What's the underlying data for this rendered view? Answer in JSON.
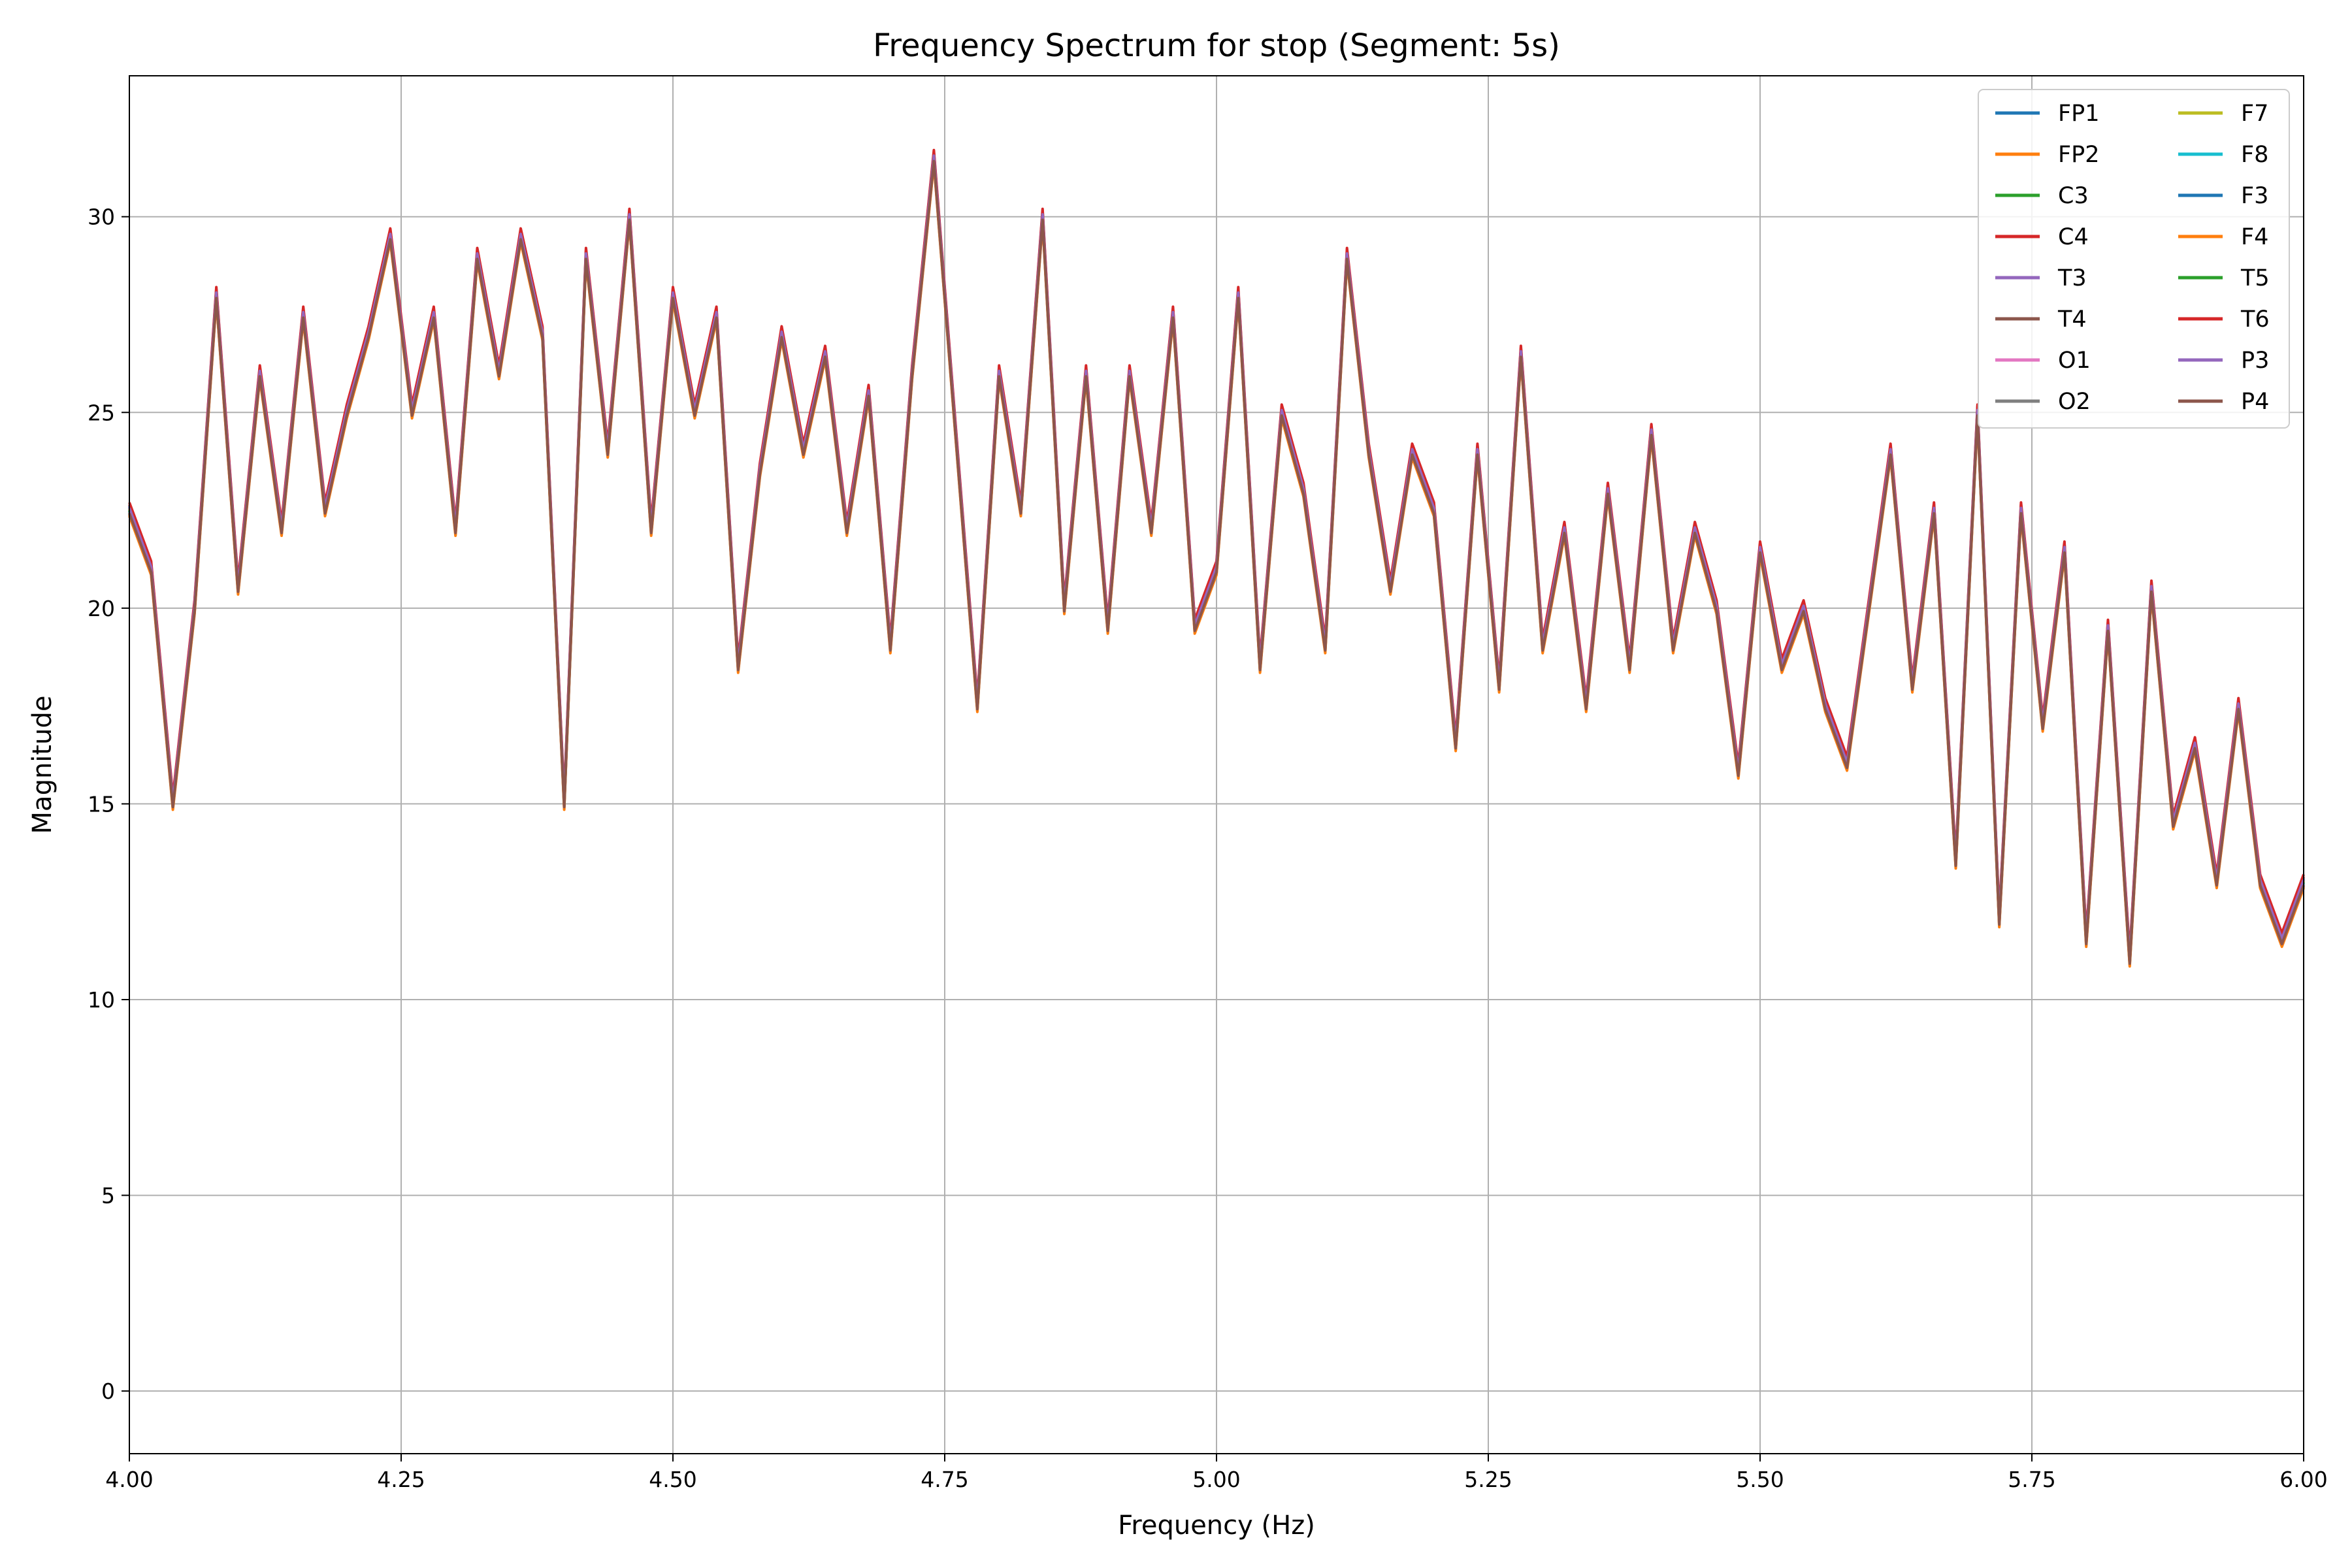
{
  "chart_data": {
    "type": "line",
    "title": "Frequency Spectrum for stop (Segment: 5s)",
    "xlabel": "Frequency (Hz)",
    "ylabel": "Magnitude",
    "xlim": [
      4.0,
      6.0
    ],
    "ylim": [
      -1.6,
      33.6
    ],
    "xticks": [
      4.0,
      4.25,
      4.5,
      4.75,
      5.0,
      5.25,
      5.5,
      5.75,
      6.0
    ],
    "xtick_labels": [
      "4.00",
      "4.25",
      "4.50",
      "4.75",
      "5.00",
      "5.25",
      "5.50",
      "5.75",
      "6.00"
    ],
    "yticks": [
      0,
      5,
      10,
      15,
      20,
      25,
      30
    ],
    "ytick_labels": [
      "0",
      "5",
      "10",
      "15",
      "20",
      "25",
      "30"
    ],
    "grid": true,
    "legend_position": "top-right",
    "legend_columns": 2,
    "series": [
      {
        "name": "FP1",
        "color": "#1f77b4",
        "offset": 0.0
      },
      {
        "name": "FP2",
        "color": "#ff7f0e",
        "offset": -0.15
      },
      {
        "name": "C3",
        "color": "#2ca02c",
        "offset": 0.05
      },
      {
        "name": "C4",
        "color": "#d62728",
        "offset": 0.2
      },
      {
        "name": "T3",
        "color": "#9467bd",
        "offset": 0.12
      },
      {
        "name": "T4",
        "color": "#8c564b",
        "offset": -0.05
      },
      {
        "name": "O1",
        "color": "#e377c2",
        "offset": 0.08
      },
      {
        "name": "O2",
        "color": "#7f7f7f",
        "offset": -0.1
      },
      {
        "name": "F7",
        "color": "#bcbd22",
        "offset": 0.03
      },
      {
        "name": "F8",
        "color": "#17becf",
        "offset": -0.02
      },
      {
        "name": "F3",
        "color": "#1f77b4",
        "offset": 0.1
      },
      {
        "name": "F4",
        "color": "#ff7f0e",
        "offset": -0.12
      },
      {
        "name": "T5",
        "color": "#2ca02c",
        "offset": 0.0
      },
      {
        "name": "T6",
        "color": "#d62728",
        "offset": 0.15
      },
      {
        "name": "P3",
        "color": "#9467bd",
        "offset": 0.06
      },
      {
        "name": "P4",
        "color": "#8c564b",
        "offset": -0.08
      }
    ],
    "x": [
      4.0,
      4.02,
      4.04,
      4.06,
      4.08,
      4.1,
      4.12,
      4.14,
      4.16,
      4.18,
      4.2,
      4.22,
      4.24,
      4.26,
      4.28,
      4.3,
      4.32,
      4.34,
      4.36,
      4.38,
      4.4,
      4.42,
      4.44,
      4.46,
      4.48,
      4.5,
      4.52,
      4.54,
      4.56,
      4.58,
      4.6,
      4.62,
      4.64,
      4.66,
      4.68,
      4.7,
      4.72,
      4.74,
      4.76,
      4.78,
      4.8,
      4.82,
      4.84,
      4.86,
      4.88,
      4.9,
      4.92,
      4.94,
      4.96,
      4.98,
      5.0,
      5.02,
      5.04,
      5.06,
      5.08,
      5.1,
      5.12,
      5.14,
      5.16,
      5.18,
      5.2,
      5.22,
      5.24,
      5.26,
      5.28,
      5.3,
      5.32,
      5.34,
      5.36,
      5.38,
      5.4,
      5.42,
      5.44,
      5.46,
      5.48,
      5.5,
      5.52,
      5.54,
      5.56,
      5.58,
      5.6,
      5.62,
      5.64,
      5.66,
      5.68,
      5.7,
      5.72,
      5.74,
      5.76,
      5.78,
      5.8,
      5.82,
      5.84,
      5.86,
      5.88,
      5.9,
      5.92,
      5.94,
      5.96,
      5.98,
      6.0
    ],
    "y_base": [
      22.5,
      21.0,
      15.0,
      20.0,
      28.0,
      20.5,
      26.0,
      22.0,
      27.5,
      22.5,
      25.0,
      27.0,
      29.5,
      25.0,
      27.5,
      22.0,
      29.0,
      26.0,
      29.5,
      27.0,
      15.0,
      29.0,
      24.0,
      30.0,
      22.0,
      28.0,
      25.0,
      27.5,
      18.5,
      23.5,
      27.0,
      24.0,
      26.5,
      22.0,
      25.5,
      19.0,
      26.0,
      31.5,
      24.5,
      17.5,
      26.0,
      22.5,
      30.0,
      20.0,
      26.0,
      19.5,
      26.0,
      22.0,
      27.5,
      19.5,
      21.0,
      28.0,
      18.5,
      25.0,
      23.0,
      19.0,
      29.0,
      24.0,
      20.5,
      24.0,
      22.5,
      16.5,
      24.0,
      18.0,
      26.5,
      19.0,
      22.0,
      17.5,
      23.0,
      18.5,
      24.5,
      19.0,
      22.0,
      20.0,
      15.8,
      21.5,
      18.5,
      20.0,
      17.5,
      16.0,
      20.0,
      24.0,
      18.0,
      22.5,
      13.5,
      25.0,
      12.0,
      22.5,
      17.0,
      21.5,
      11.5,
      19.5,
      11.0,
      20.5,
      14.5,
      16.5,
      13.0,
      17.5,
      13.0,
      11.5,
      13.0
    ]
  }
}
